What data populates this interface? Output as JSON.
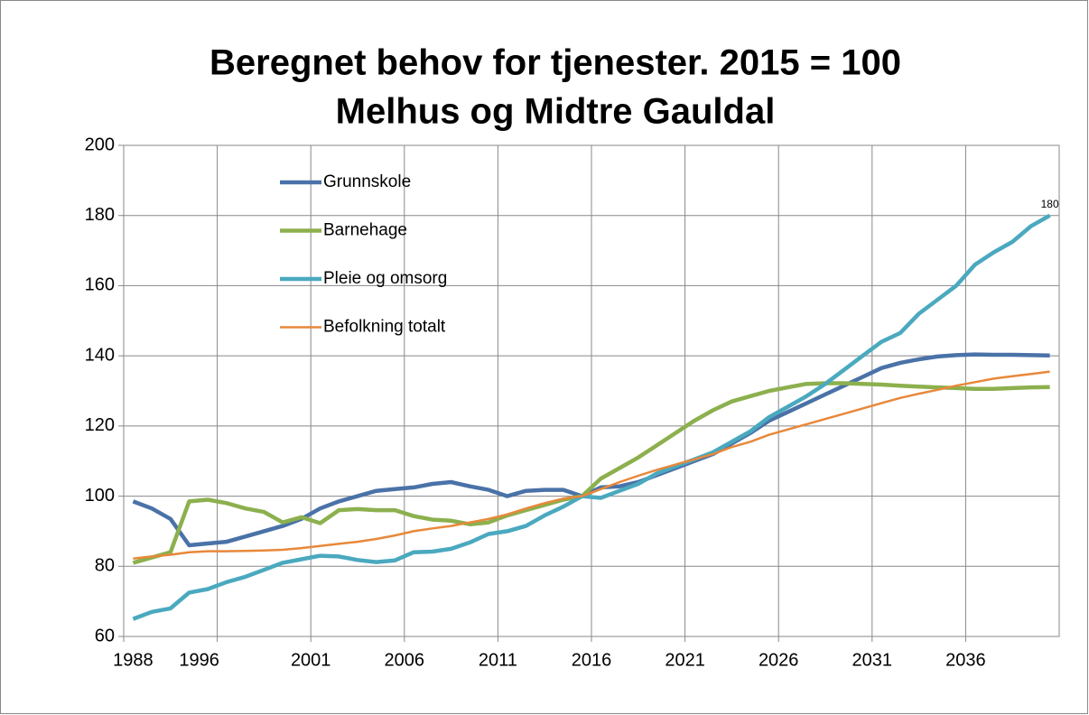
{
  "chart_data": {
    "type": "line",
    "title": "Beregnet behov for tjenester.  2015 = 100",
    "subtitle": "Melhus og Midtre Gauldal",
    "categories": [
      "1988",
      null,
      null,
      null,
      null,
      "1996",
      null,
      null,
      null,
      null,
      "2001",
      null,
      null,
      null,
      null,
      "2006",
      null,
      null,
      null,
      null,
      "2011",
      null,
      null,
      null,
      null,
      "2016",
      null,
      null,
      null,
      null,
      "2021",
      null,
      null,
      null,
      null,
      "2026",
      null,
      null,
      null,
      null,
      "2031",
      null,
      null,
      null,
      null,
      "2036",
      null,
      null,
      null,
      null
    ],
    "series": [
      {
        "name": "Grunnskole",
        "color": "#4a72a8",
        "width": 4.5,
        "values": [
          98.5,
          96.5,
          93.5,
          86,
          86.5,
          87,
          88.5,
          90,
          91.5,
          93.5,
          96.5,
          98.5,
          100,
          101.5,
          102,
          102.5,
          103.5,
          104,
          102.8,
          101.8,
          100,
          101.5,
          101.8,
          101.8,
          100,
          102.5,
          102.8,
          104,
          106,
          108,
          110,
          112,
          115,
          118,
          121.5,
          124,
          126.5,
          129,
          131.5,
          134,
          136.5,
          138,
          139,
          139.8,
          140.2,
          140.4,
          140.3,
          140.3,
          140.2,
          140.1
        ]
      },
      {
        "name": "Barnehage",
        "color": "#8cb04e",
        "width": 4.5,
        "values": [
          81,
          82.5,
          84,
          98.5,
          99,
          98,
          96.5,
          95.5,
          92.5,
          94,
          92.3,
          96,
          96.3,
          96,
          96,
          94.3,
          93.3,
          93,
          92,
          92.5,
          94.5,
          96,
          97.5,
          99,
          100,
          105,
          108,
          111,
          114.5,
          118,
          121.5,
          124.5,
          127,
          128.5,
          130,
          131,
          132,
          132.2,
          132.2,
          132,
          131.8,
          131.5,
          131.2,
          131,
          130.8,
          130.6,
          130.6,
          130.8,
          131,
          131.1
        ]
      },
      {
        "name": "Pleie og omsorg",
        "color": "#4aa9bf",
        "width": 4.5,
        "label_last": true,
        "values": [
          65,
          67,
          68,
          72.5,
          73.5,
          75.5,
          77,
          79,
          81,
          82,
          83,
          82.8,
          81.8,
          81.2,
          81.7,
          84,
          84.2,
          85,
          86.8,
          89.2,
          90,
          91.5,
          94.5,
          97,
          100,
          99.5,
          101.5,
          103.5,
          106.5,
          108.5,
          110.5,
          112.5,
          115.5,
          118.5,
          122.5,
          125.5,
          128.5,
          132,
          136,
          140,
          144,
          146.5,
          152,
          156,
          160,
          166,
          169.5,
          172.5,
          177,
          180
        ]
      },
      {
        "name": "Befolkning totalt",
        "color": "#e8883a",
        "width": 2.5,
        "values": [
          82.2,
          82.8,
          83.3,
          84,
          84.3,
          84.3,
          84.4,
          84.5,
          84.7,
          85.2,
          85.8,
          86.4,
          87,
          87.8,
          88.8,
          90,
          90.8,
          91.5,
          92.5,
          93.5,
          94.8,
          96.5,
          98,
          99.3,
          100,
          102,
          104,
          105.8,
          107.5,
          109,
          110.5,
          112,
          114,
          115.5,
          117.5,
          119,
          120.5,
          122,
          123.5,
          125,
          126.5,
          128,
          129.2,
          130.3,
          131.5,
          132.5,
          133.5,
          134.2,
          134.8,
          135.5
        ]
      }
    ],
    "ylim": [
      60,
      200
    ],
    "yticks": [
      60,
      80,
      100,
      120,
      140,
      160,
      180,
      200
    ],
    "grid": true,
    "legend": "upper-left"
  }
}
